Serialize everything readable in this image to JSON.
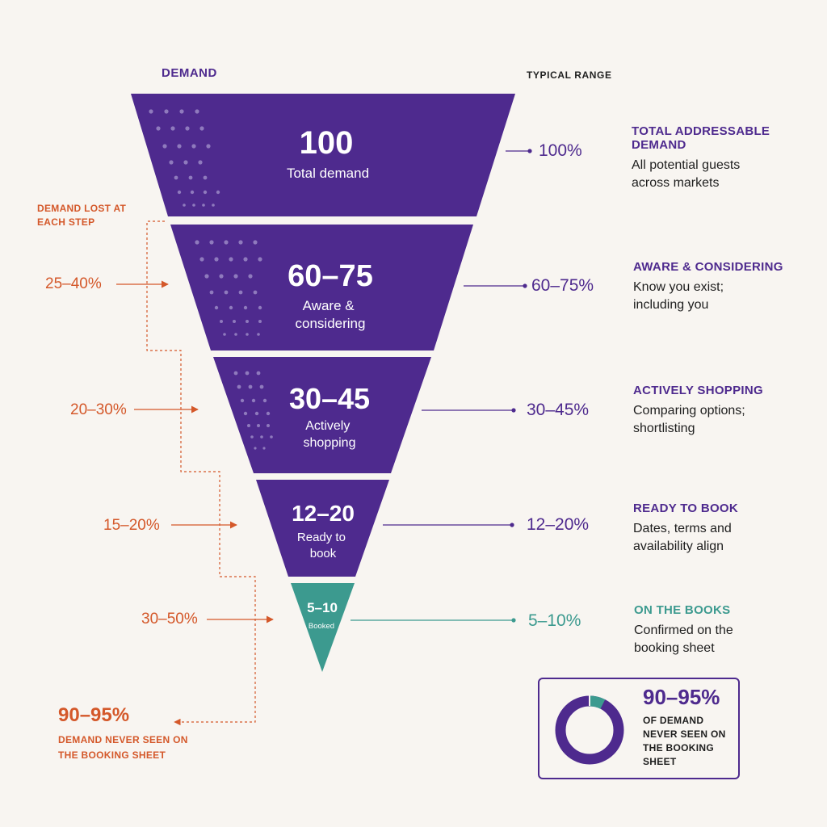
{
  "headers": {
    "demand": "DEMAND",
    "typical_range": "TYPICAL RANGE",
    "demand_lost": "DEMAND LOST AT EACH STEP"
  },
  "colors": {
    "purple": "#4e2a8e",
    "teal": "#3c9a8f",
    "orange": "#d4582a",
    "background": "#f8f5f1"
  },
  "stages": [
    {
      "value": "100",
      "label": "Total demand",
      "range": "100%",
      "title": "TOTAL ADDRESSABLE DEMAND",
      "description": "All potential guests across markets"
    },
    {
      "value": "60–75",
      "label": "Aware & considering",
      "range": "60–75%",
      "title": "AWARE & CONSIDERING",
      "description": "Know you exist; including you"
    },
    {
      "value": "30–45",
      "label": "Actively shopping",
      "range": "30–45%",
      "title": "ACTIVELY SHOPPING",
      "description": "Comparing options; shortlisting"
    },
    {
      "value": "12–20",
      "label": "Ready to book",
      "range": "12–20%",
      "title": "READY TO BOOK",
      "description": "Dates, terms and availability align"
    },
    {
      "value": "5–10",
      "label": "Booked",
      "range": "5–10%",
      "title": "ON THE BOOKS",
      "description": "Confirmed on the booking sheet"
    }
  ],
  "lost": [
    "25–40%",
    "20–30%",
    "15–20%",
    "30–50%"
  ],
  "never_seen": {
    "percent": "90–95%",
    "text": "DEMAND NEVER SEEN ON THE BOOKING SHEET"
  },
  "summary": {
    "percent": "90–95%",
    "text": "OF DEMAND NEVER SEEN ON THE BOOKING SHEET",
    "donut_fraction_seen": 0.075
  }
}
